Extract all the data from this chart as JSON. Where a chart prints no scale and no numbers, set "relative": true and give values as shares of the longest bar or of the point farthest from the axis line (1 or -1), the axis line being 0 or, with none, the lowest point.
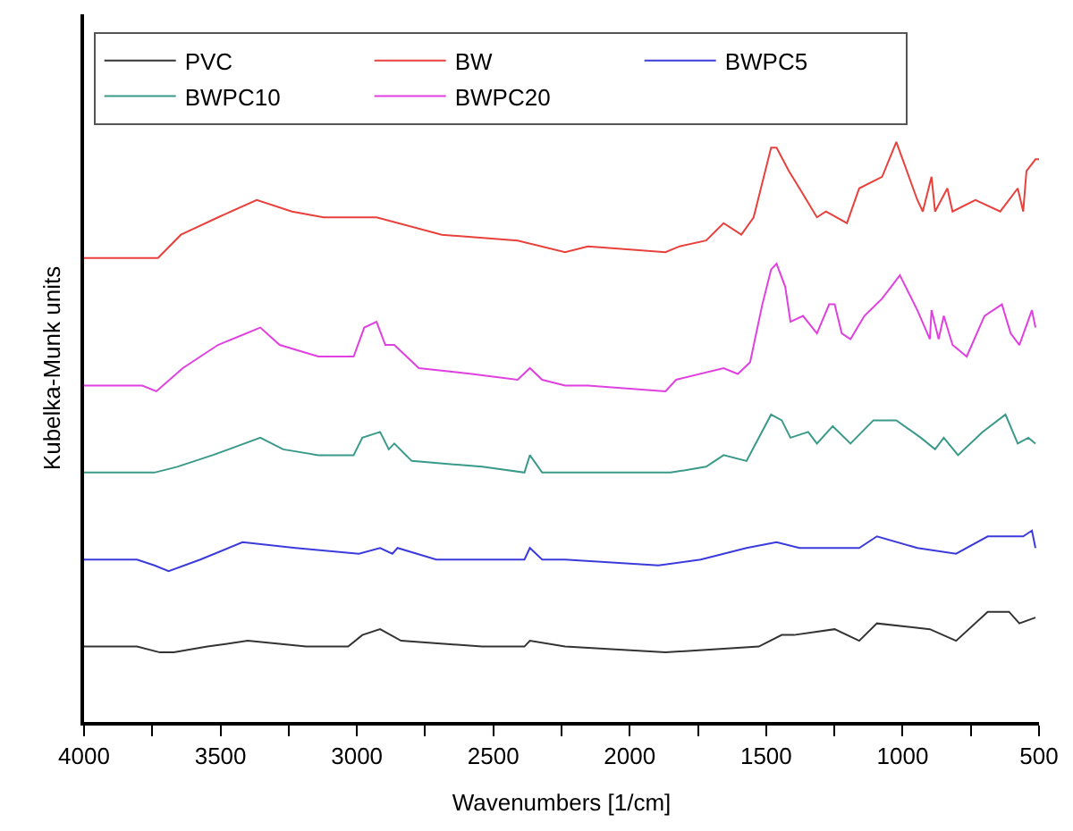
{
  "chart_data": {
    "type": "line",
    "xlabel": "Wavenumbers [1/cm]",
    "ylabel": "Kubelka-Munk units",
    "relative": true,
    "xlim": [
      4000,
      500
    ],
    "xticks": [
      4000,
      {
        "value": 3750,
        "label": null
      },
      3500,
      {
        "value": 3250,
        "label": null
      },
      3000,
      {
        "value": 2750,
        "label": null
      },
      2500,
      {
        "value": 2250,
        "label": null
      },
      2000,
      {
        "value": 1750,
        "label": null
      },
      1500,
      {
        "value": 1250,
        "label": null
      },
      1000,
      {
        "value": 750,
        "label": null
      },
      500
    ],
    "legend": "top",
    "line_style": "solid",
    "marker": "none",
    "series": [
      {
        "name": "PVC",
        "color": "#333333",
        "x": [
          4000,
          3806,
          3722,
          3671,
          3548,
          3400,
          3186,
          3032,
          2980,
          2915,
          2838,
          2541,
          2386,
          2366,
          2237,
          1869,
          1527,
          1443,
          1398,
          1249,
          1159,
          1094,
          900,
          804,
          688,
          610,
          572,
          513
        ],
        "values": [
          0.13,
          0.13,
          0.12,
          0.12,
          0.13,
          0.14,
          0.13,
          0.13,
          0.15,
          0.16,
          0.14,
          0.13,
          0.13,
          0.14,
          0.13,
          0.12,
          0.13,
          0.15,
          0.15,
          0.16,
          0.14,
          0.17,
          0.16,
          0.14,
          0.19,
          0.19,
          0.17,
          0.18
        ]
      },
      {
        "name": "BW",
        "color": "#e8413c",
        "x": [
          4000,
          3729,
          3645,
          3509,
          3367,
          3238,
          3122,
          2928,
          2689,
          2411,
          2237,
          2153,
          1869,
          1817,
          1720,
          1656,
          1591,
          1546,
          1482,
          1462,
          1417,
          1365,
          1314,
          1281,
          1204,
          1159,
          1075,
          1023,
          946,
          926,
          894,
          881,
          836,
          817,
          733,
          642,
          578,
          558,
          546,
          513,
          500
        ],
        "values": [
          0.8,
          0.8,
          0.84,
          0.87,
          0.9,
          0.88,
          0.87,
          0.87,
          0.84,
          0.83,
          0.81,
          0.82,
          0.81,
          0.82,
          0.83,
          0.86,
          0.84,
          0.87,
          0.99,
          0.99,
          0.95,
          0.91,
          0.87,
          0.88,
          0.86,
          0.92,
          0.94,
          1.0,
          0.9,
          0.88,
          0.94,
          0.88,
          0.92,
          0.88,
          0.9,
          0.88,
          0.92,
          0.88,
          0.95,
          0.97,
          0.97
        ]
      },
      {
        "name": "BWPC5",
        "color": "#3b3bdc",
        "x": [
          4000,
          3806,
          3742,
          3690,
          3574,
          3419,
          3225,
          2993,
          2915,
          2870,
          2851,
          2709,
          2386,
          2366,
          2321,
          2237,
          1895,
          1740,
          1656,
          1572,
          1462,
          1378,
          1249,
          1159,
          1094,
          946,
          804,
          688,
          558,
          526,
          513
        ],
        "values": [
          0.28,
          0.28,
          0.27,
          0.26,
          0.28,
          0.31,
          0.3,
          0.29,
          0.3,
          0.29,
          0.3,
          0.28,
          0.28,
          0.3,
          0.28,
          0.28,
          0.27,
          0.28,
          0.29,
          0.3,
          0.31,
          0.3,
          0.3,
          0.3,
          0.32,
          0.3,
          0.29,
          0.32,
          0.32,
          0.33,
          0.3
        ]
      },
      {
        "name": "BWPC10",
        "color": "#3a9a8a",
        "x": [
          4000,
          3806,
          3742,
          3658,
          3529,
          3354,
          3270,
          3141,
          3012,
          2980,
          2915,
          2883,
          2863,
          2799,
          2541,
          2386,
          2366,
          2321,
          2237,
          1934,
          1850,
          1720,
          1656,
          1572,
          1482,
          1443,
          1411,
          1346,
          1314,
          1256,
          1191,
          1107,
          1023,
          933,
          881,
          849,
          797,
          707,
          623,
          578,
          539,
          513
        ],
        "values": [
          0.43,
          0.43,
          0.43,
          0.44,
          0.46,
          0.49,
          0.47,
          0.46,
          0.46,
          0.49,
          0.5,
          0.47,
          0.48,
          0.45,
          0.44,
          0.43,
          0.46,
          0.43,
          0.43,
          0.43,
          0.43,
          0.44,
          0.46,
          0.45,
          0.53,
          0.52,
          0.49,
          0.5,
          0.48,
          0.51,
          0.48,
          0.52,
          0.52,
          0.49,
          0.47,
          0.49,
          0.46,
          0.5,
          0.53,
          0.48,
          0.49,
          0.48
        ]
      },
      {
        "name": "BWPC20",
        "color": "#e040e0",
        "x": [
          4000,
          3787,
          3735,
          3638,
          3509,
          3354,
          3283,
          3141,
          3012,
          2973,
          2928,
          2896,
          2863,
          2773,
          2579,
          2411,
          2366,
          2321,
          2237,
          2153,
          1869,
          1830,
          1656,
          1604,
          1559,
          1514,
          1482,
          1462,
          1430,
          1411,
          1365,
          1314,
          1269,
          1249,
          1223,
          1191,
          1140,
          1075,
          1010,
          946,
          900,
          894,
          868,
          849,
          817,
          765,
          700,
          636,
          604,
          572,
          526,
          513
        ],
        "values": [
          0.58,
          0.58,
          0.57,
          0.61,
          0.65,
          0.68,
          0.65,
          0.63,
          0.63,
          0.68,
          0.69,
          0.65,
          0.65,
          0.61,
          0.6,
          0.59,
          0.61,
          0.59,
          0.58,
          0.58,
          0.57,
          0.59,
          0.61,
          0.6,
          0.62,
          0.72,
          0.78,
          0.79,
          0.75,
          0.69,
          0.7,
          0.67,
          0.72,
          0.72,
          0.67,
          0.66,
          0.7,
          0.73,
          0.77,
          0.71,
          0.66,
          0.71,
          0.66,
          0.7,
          0.65,
          0.63,
          0.7,
          0.72,
          0.67,
          0.65,
          0.71,
          0.68
        ]
      }
    ]
  }
}
